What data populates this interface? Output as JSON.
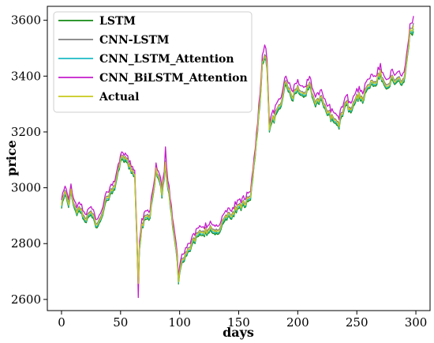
{
  "chart_data": {
    "type": "line",
    "title": "",
    "xlabel": "days",
    "ylabel": "price",
    "xlim": [
      -12,
      312
    ],
    "ylim": [
      2560,
      3650
    ],
    "x_ticks": [
      0,
      50,
      100,
      150,
      200,
      250,
      300
    ],
    "y_ticks": [
      2600,
      2800,
      3000,
      3200,
      3400,
      3600
    ],
    "grid": false,
    "legend_position": "top-left",
    "x_knots": [
      0,
      3,
      6,
      8,
      12,
      15,
      20,
      25,
      30,
      35,
      40,
      45,
      50,
      55,
      58,
      62,
      64,
      65,
      66,
      68,
      70,
      75,
      80,
      83,
      85,
      87,
      88,
      90,
      93,
      95,
      97,
      99,
      100,
      102,
      105,
      110,
      115,
      120,
      125,
      130,
      135,
      140,
      145,
      150,
      155,
      160,
      165,
      168,
      170,
      172,
      174,
      176,
      180,
      185,
      190,
      195,
      200,
      205,
      210,
      215,
      220,
      225,
      230,
      235,
      240,
      245,
      250,
      255,
      260,
      265,
      270,
      275,
      280,
      285,
      290,
      295,
      298
    ],
    "series": [
      {
        "name": "LSTM",
        "color": "#128a12",
        "y": [
          2925,
          2975,
          2935,
          2985,
          2905,
          2915,
          2880,
          2900,
          2855,
          2910,
          2965,
          2990,
          3095,
          3085,
          3070,
          3040,
          2780,
          2640,
          2780,
          2855,
          2880,
          2895,
          3055,
          3025,
          2960,
          3040,
          3070,
          3000,
          2900,
          2830,
          2780,
          2665,
          2700,
          2730,
          2750,
          2790,
          2820,
          2830,
          2845,
          2830,
          2850,
          2885,
          2900,
          2920,
          2935,
          2955,
          3160,
          3300,
          3440,
          3470,
          3420,
          3210,
          3240,
          3280,
          3370,
          3310,
          3350,
          3320,
          3360,
          3290,
          3310,
          3270,
          3230,
          3215,
          3300,
          3270,
          3320,
          3310,
          3360,
          3360,
          3400,
          3360,
          3380,
          3380,
          3370,
          3550,
          3560
        ]
      },
      {
        "name": "CNN-LSTM",
        "color": "#808080",
        "y": [
          2940,
          2990,
          2950,
          2995,
          2920,
          2930,
          2895,
          2915,
          2870,
          2925,
          2980,
          3005,
          3110,
          3100,
          3085,
          3055,
          2795,
          2655,
          2795,
          2870,
          2895,
          2910,
          3065,
          3040,
          2975,
          3055,
          3085,
          3015,
          2915,
          2845,
          2795,
          2680,
          2715,
          2745,
          2765,
          2805,
          2835,
          2845,
          2860,
          2845,
          2865,
          2900,
          2915,
          2935,
          2950,
          2970,
          3175,
          3320,
          3455,
          3485,
          3435,
          3225,
          3255,
          3295,
          3385,
          3325,
          3365,
          3335,
          3375,
          3305,
          3325,
          3285,
          3245,
          3230,
          3315,
          3285,
          3335,
          3325,
          3375,
          3375,
          3415,
          3375,
          3395,
          3395,
          3385,
          3565,
          3590
        ]
      },
      {
        "name": "CNN_LSTM_Attention",
        "color": "#1bbcc6",
        "y": [
          2930,
          2980,
          2940,
          2988,
          2910,
          2920,
          2885,
          2905,
          2860,
          2915,
          2970,
          2995,
          3100,
          3090,
          3075,
          3045,
          2785,
          2645,
          2785,
          2860,
          2885,
          2900,
          3060,
          3030,
          2965,
          3045,
          3075,
          3005,
          2905,
          2835,
          2785,
          2670,
          2705,
          2735,
          2755,
          2795,
          2825,
          2835,
          2850,
          2835,
          2855,
          2890,
          2905,
          2925,
          2940,
          2960,
          3165,
          3310,
          3445,
          3475,
          3425,
          3215,
          3245,
          3285,
          3375,
          3315,
          3355,
          3325,
          3365,
          3295,
          3315,
          3275,
          3235,
          3220,
          3305,
          3275,
          3325,
          3315,
          3365,
          3365,
          3405,
          3365,
          3385,
          3385,
          3375,
          3555,
          3570
        ]
      },
      {
        "name": "CNN_BiLSTM_Attention",
        "color": "#c41ccc",
        "y": [
          2955,
          3005,
          2965,
          3010,
          2935,
          2945,
          2910,
          2930,
          2885,
          2940,
          2995,
          3020,
          3120,
          3110,
          3095,
          3065,
          2810,
          2600,
          2810,
          2885,
          2910,
          2925,
          3080,
          3055,
          2990,
          3070,
          3135,
          3030,
          2930,
          2860,
          2810,
          2690,
          2730,
          2760,
          2780,
          2820,
          2850,
          2860,
          2875,
          2860,
          2880,
          2915,
          2930,
          2950,
          2965,
          2985,
          3190,
          3340,
          3475,
          3520,
          3455,
          3240,
          3275,
          3315,
          3400,
          3345,
          3385,
          3355,
          3395,
          3325,
          3345,
          3305,
          3265,
          3250,
          3335,
          3305,
          3355,
          3345,
          3395,
          3395,
          3435,
          3395,
          3415,
          3415,
          3405,
          3580,
          3615
        ]
      },
      {
        "name": "Actual",
        "color": "#c8c81c",
        "y": [
          2935,
          2985,
          2945,
          2992,
          2915,
          2925,
          2890,
          2910,
          2865,
          2920,
          2975,
          3000,
          3105,
          3095,
          3080,
          3050,
          2790,
          2650,
          2790,
          2865,
          2890,
          2905,
          3062,
          3035,
          2970,
          3050,
          3080,
          3010,
          2910,
          2840,
          2790,
          2675,
          2710,
          2740,
          2760,
          2800,
          2830,
          2840,
          2855,
          2840,
          2860,
          2895,
          2910,
          2930,
          2945,
          2965,
          3170,
          3315,
          3450,
          3480,
          3430,
          3220,
          3250,
          3290,
          3380,
          3320,
          3360,
          3330,
          3370,
          3300,
          3320,
          3280,
          3240,
          3225,
          3310,
          3280,
          3330,
          3320,
          3370,
          3370,
          3410,
          3370,
          3390,
          3390,
          3380,
          3560,
          3580
        ]
      }
    ]
  }
}
